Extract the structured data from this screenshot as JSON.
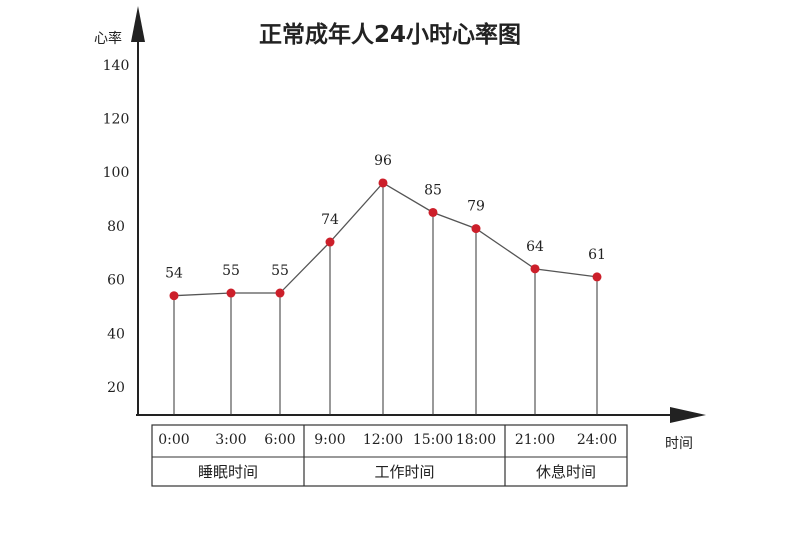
{
  "chart_data": {
    "type": "line",
    "title": "正常成年人24小时心率图",
    "ylabel": "心率",
    "xlabel": "时间",
    "ylim": [
      0,
      140
    ],
    "yticks": [
      20,
      40,
      60,
      80,
      100,
      120,
      140
    ],
    "categories": [
      "0:00",
      "3:00",
      "6:00",
      "9:00",
      "12:00",
      "15:00",
      "18:00",
      "21:00",
      "24:00"
    ],
    "values": [
      54,
      55,
      55,
      74,
      96,
      85,
      79,
      64,
      61
    ],
    "periods": [
      {
        "label": "睡眠时间",
        "from": 0,
        "to": 2
      },
      {
        "label": "工作时间",
        "from": 3,
        "to": 6
      },
      {
        "label": "休息时间",
        "from": 7,
        "to": 8
      }
    ],
    "grid": false,
    "point_color": "#cc1f2a",
    "line_color": "#555555"
  }
}
